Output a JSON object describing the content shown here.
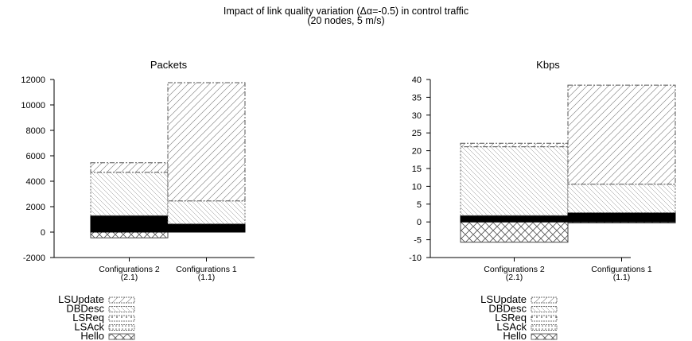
{
  "figure": {
    "title_line1": "Impact of link quality variation (Δα=-0.5) in control traffic",
    "title_line2": "(20 nodes, 5 m/s)"
  },
  "chart_data": [
    {
      "type": "bar",
      "stacked": true,
      "title": "Packets",
      "xlabel": "",
      "ylabel": "",
      "ylim": [
        -2000,
        12000
      ],
      "yticks": [
        -2000,
        0,
        2000,
        4000,
        6000,
        8000,
        10000,
        12000
      ],
      "categories": [
        {
          "line1": "Configurations 2",
          "line2": "(2.1)"
        },
        {
          "line1": "Configurations 1",
          "line2": "(1.1)"
        }
      ],
      "series": [
        {
          "name": "Hello",
          "values": [
            -450,
            0
          ]
        },
        {
          "name": "LSAck",
          "values": [
            1300,
            650
          ]
        },
        {
          "name": "LSReq",
          "values": [
            0,
            0
          ]
        },
        {
          "name": "DBDesc",
          "values": [
            3400,
            1800
          ]
        },
        {
          "name": "LSUpdate",
          "values": [
            750,
            9300
          ]
        }
      ],
      "legend": "bottom-left"
    },
    {
      "type": "bar",
      "stacked": true,
      "title": "Kbps",
      "xlabel": "",
      "ylabel": "",
      "ylim": [
        -10,
        40
      ],
      "yticks": [
        -10,
        -5,
        0,
        5,
        10,
        15,
        20,
        25,
        30,
        35,
        40
      ],
      "categories": [
        {
          "line1": "Configurations 2",
          "line2": "(2.1)"
        },
        {
          "line1": "Configurations 1",
          "line2": "(1.1)"
        }
      ],
      "series": [
        {
          "name": "Hello",
          "values": [
            -5.7,
            -0.3
          ]
        },
        {
          "name": "LSAck",
          "values": [
            1.8,
            2.6
          ]
        },
        {
          "name": "LSReq",
          "values": [
            0,
            0
          ]
        },
        {
          "name": "DBDesc",
          "values": [
            19.3,
            8.0
          ]
        },
        {
          "name": "LSUpdate",
          "values": [
            1.0,
            27.8
          ]
        }
      ],
      "legend": "bottom-left"
    }
  ]
}
